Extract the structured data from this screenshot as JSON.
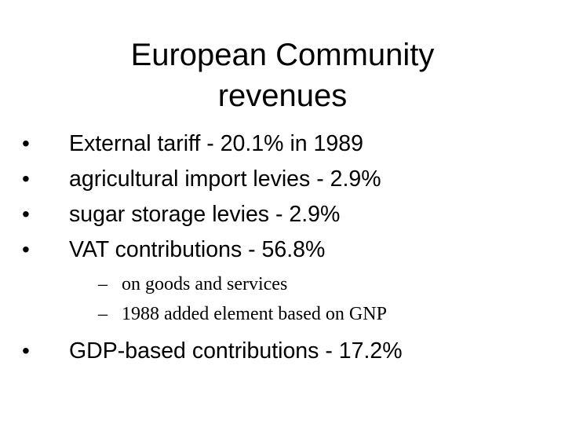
{
  "slide": {
    "title_line1": "European Community",
    "title_line2": "revenues",
    "bullets": [
      {
        "mark": "•",
        "text": "External tariff - 20.1% in 1989"
      },
      {
        "mark": "•",
        "text": "agricultural import levies - 2.9%"
      },
      {
        "mark": "•",
        "text": "sugar storage levies - 2.9%"
      },
      {
        "mark": "•",
        "text": "VAT contributions - 56.8%"
      }
    ],
    "sub_bullets": [
      {
        "mark": "–",
        "text": "on goods and services"
      },
      {
        "mark": "–",
        "text": "1988 added element based on GNP"
      }
    ],
    "final_bullet": {
      "mark": "•",
      "text": "GDP-based contributions - 17.2%"
    }
  }
}
